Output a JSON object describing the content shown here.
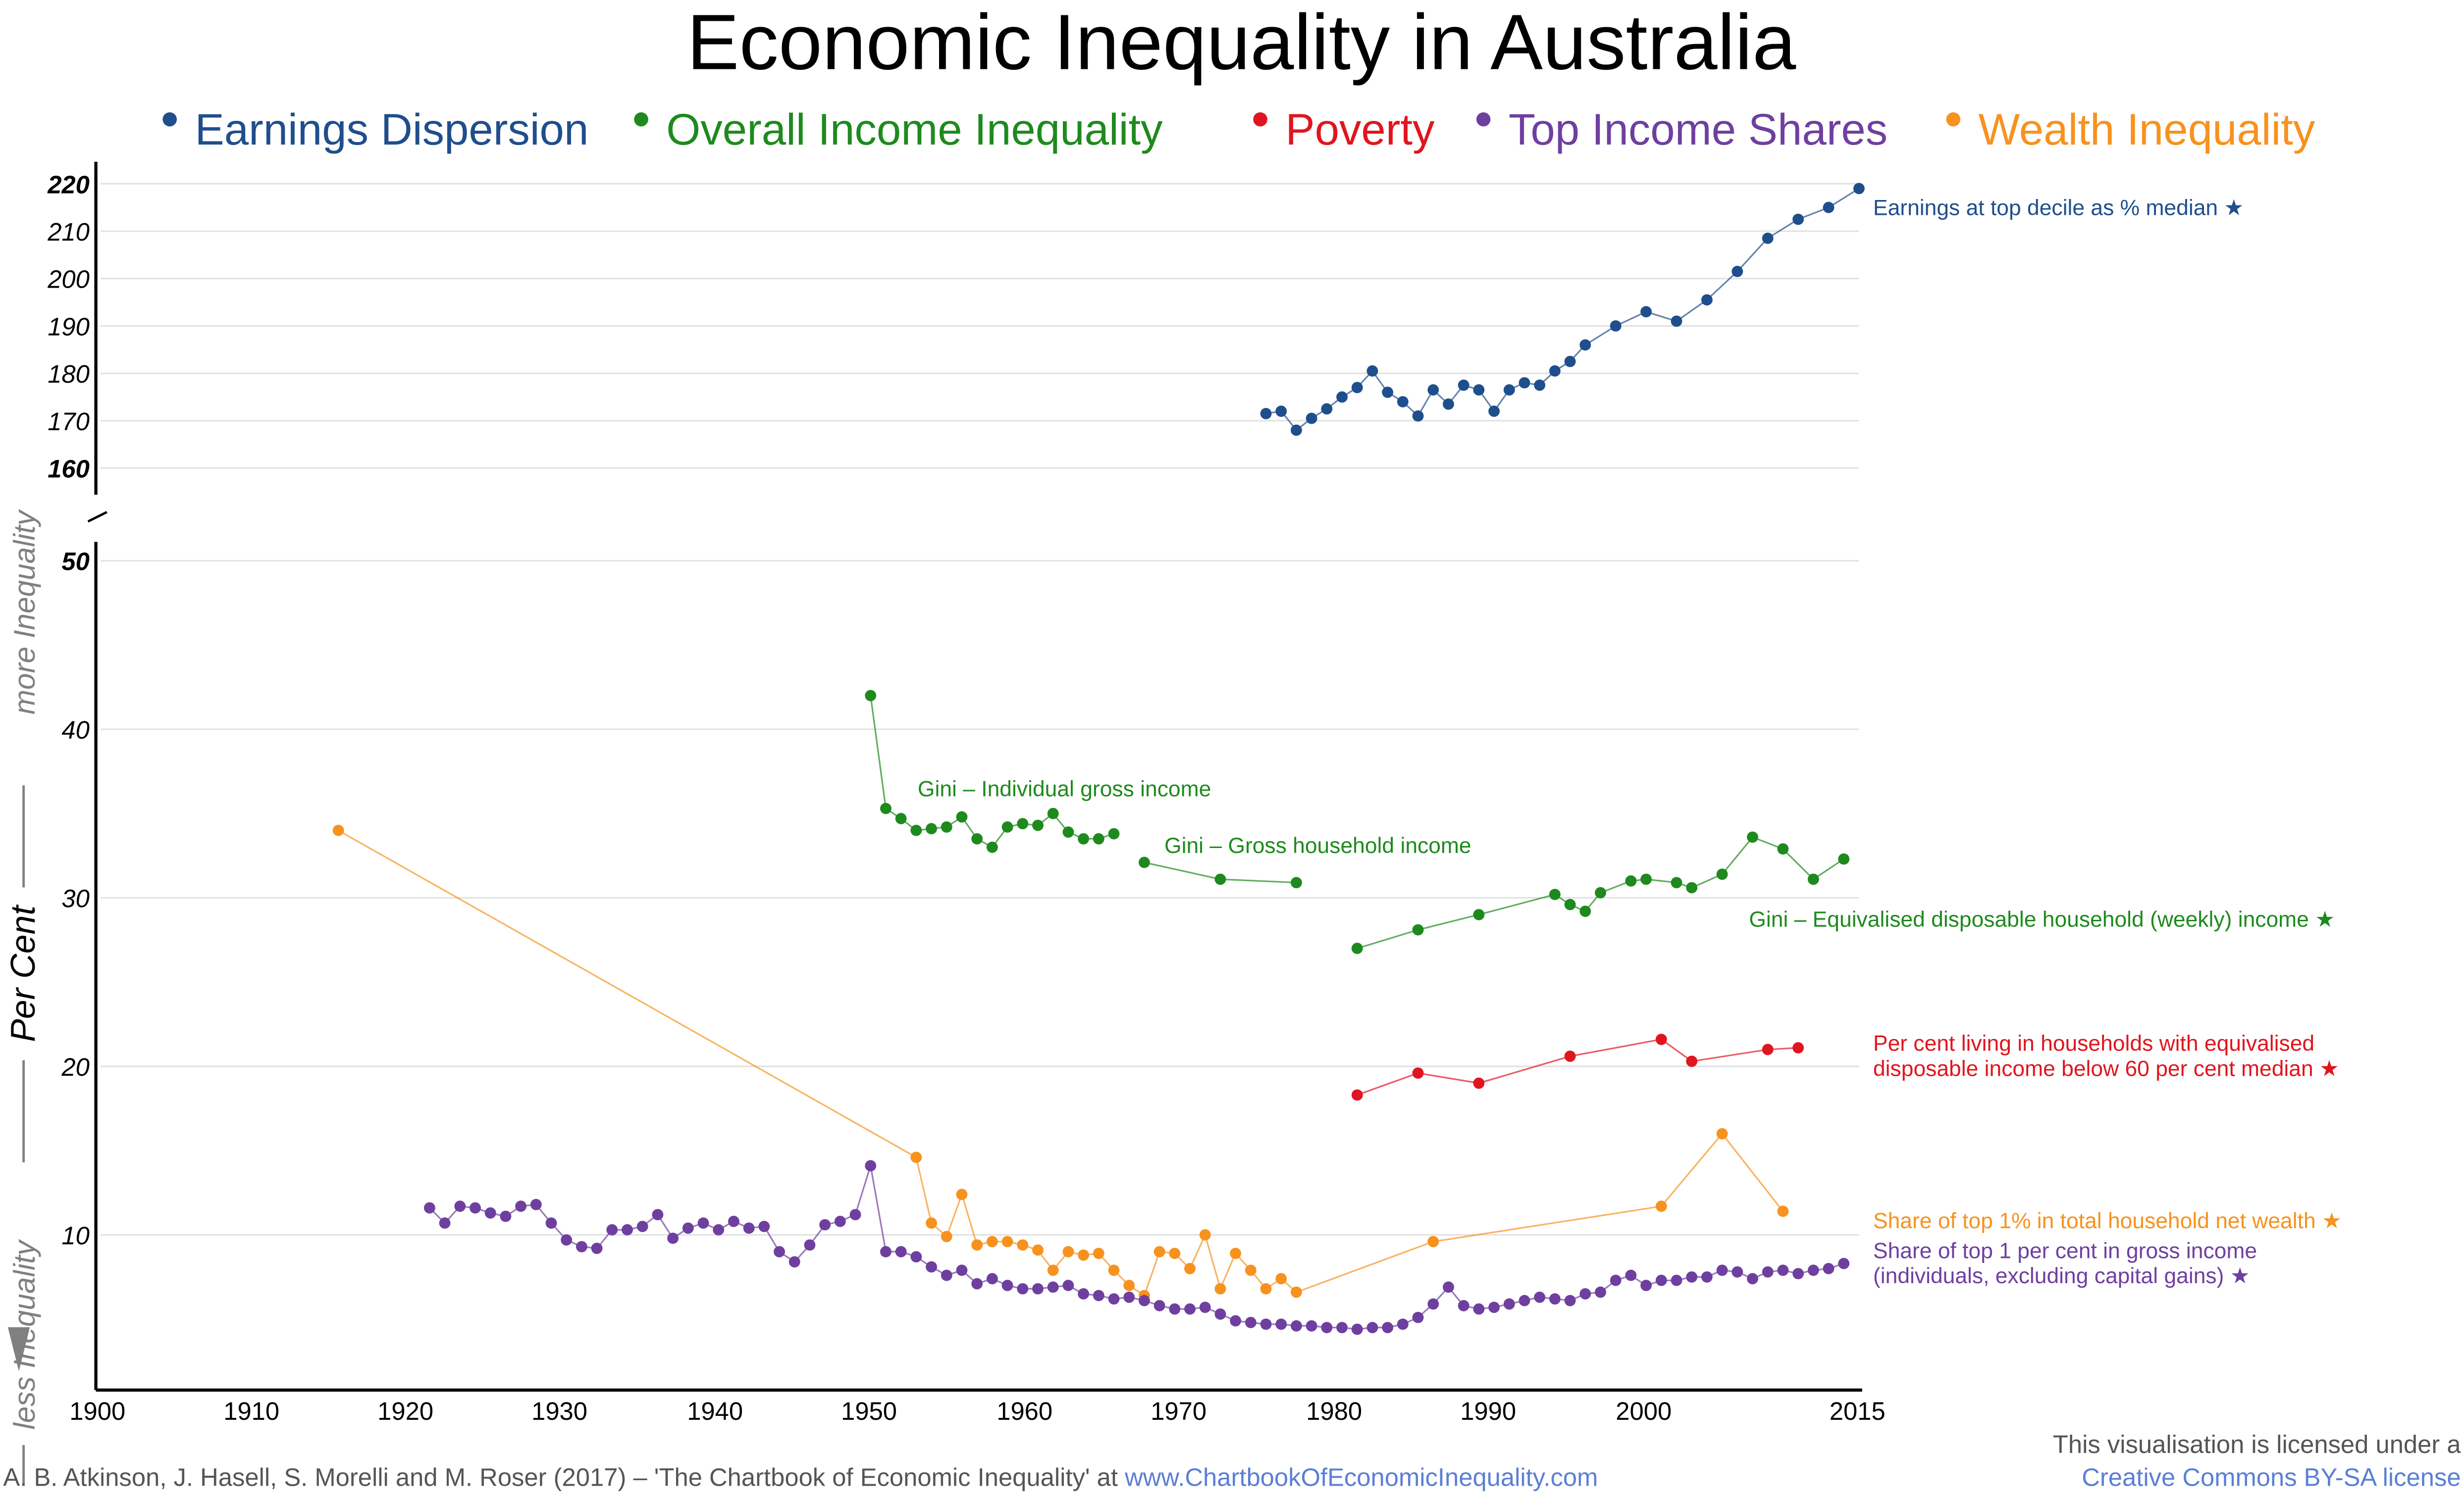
{
  "chart_data": {
    "type": "line",
    "title": "Economic Inequality in Australia",
    "ylabel": "Per Cent",
    "ylabel_more": "more Inequality",
    "ylabel_less": "less Inequality",
    "legend_placement": "top",
    "grid": true,
    "legend": [
      {
        "name": "Earnings Dispersion",
        "color": "#1f4e8c"
      },
      {
        "name": "Overall Income Inequality",
        "color": "#1e8a1e"
      },
      {
        "name": "Poverty",
        "color": "#e0151f"
      },
      {
        "name": "Top Income Shares",
        "color": "#6f3fa0"
      },
      {
        "name": "Wealth Inequality",
        "color": "#f7921e"
      }
    ],
    "x_ticks": [
      "1900",
      "1910",
      "1920",
      "1930",
      "1940",
      "1950",
      "1960",
      "1970",
      "1980",
      "1990",
      "2000",
      "2015"
    ],
    "xlim": [
      1900,
      2015
    ],
    "top_panel": {
      "ylim": [
        155,
        222
      ],
      "y_ticks": [
        "220",
        "210",
        "200",
        "190",
        "180",
        "170",
        "160"
      ]
    },
    "bottom_panel": {
      "ylim": [
        0,
        51
      ],
      "y_ticks": [
        "50",
        "40",
        "30",
        "20",
        "10"
      ]
    },
    "series": [
      {
        "name": "Earnings Dispersion",
        "label": "Earnings at top decile as % median ★",
        "panel": "top",
        "color": "#1f4e8c",
        "x": [
          1976,
          1977,
          1978,
          1979,
          1980,
          1981,
          1982,
          1983,
          1984,
          1985,
          1986,
          1987,
          1988,
          1989,
          1990,
          1991,
          1992,
          1993,
          1994,
          1995,
          1996,
          1997,
          1999,
          2001,
          2003,
          2005,
          2007,
          2009,
          2011,
          2013,
          2015
        ],
        "y": [
          171.5,
          172,
          168,
          170.5,
          172.5,
          175,
          177,
          180.5,
          176,
          174,
          171,
          176.5,
          173.5,
          177.5,
          176.5,
          172,
          176.5,
          178,
          177.5,
          180.5,
          182.5,
          186,
          190,
          193,
          191,
          195.5,
          201.5,
          208.5,
          212.5,
          215,
          219
        ]
      },
      {
        "name": "Overall Income Inequality",
        "label": "Gini – Individual gross income",
        "panel": "bottom",
        "color": "#1e8a1e",
        "x": [
          1950,
          1951,
          1952,
          1953,
          1954,
          1955,
          1956,
          1957,
          1958,
          1959,
          1960,
          1961,
          1962,
          1963,
          1964,
          1965,
          1966
        ],
        "y": [
          42,
          35.3,
          34.7,
          34,
          34.1,
          34.2,
          34.8,
          33.5,
          33,
          34.2,
          34.4,
          34.3,
          35,
          33.9,
          33.5,
          33.5,
          33.8
        ]
      },
      {
        "name": "Overall Income Inequality",
        "label": "Gini – Gross household income",
        "panel": "bottom",
        "color": "#1e8a1e",
        "x": [
          1968,
          1973,
          1978
        ],
        "y": [
          32.1,
          31.1,
          30.9
        ]
      },
      {
        "name": "Overall Income Inequality",
        "label": "Gini – Equivalised disposable household (weekly) income ★",
        "panel": "bottom",
        "color": "#1e8a1e",
        "x": [
          1982,
          1986,
          1990,
          1995,
          1996,
          1997,
          1998,
          2000,
          2001,
          2003,
          2004,
          2006,
          2008,
          2010,
          2012,
          2014
        ],
        "y": [
          27,
          28.1,
          29,
          30.2,
          29.6,
          29.2,
          30.3,
          31,
          31.1,
          30.9,
          30.6,
          31.4,
          33.6,
          32.9,
          31.1,
          32.3
        ]
      },
      {
        "name": "Poverty",
        "label": "Per cent living in households with equivalised disposable income below 60 per cent median ★",
        "label_lines": [
          "Per cent living in households with equivalised",
          "disposable income below 60 per cent median ★"
        ],
        "panel": "bottom",
        "color": "#e0151f",
        "x": [
          1982,
          1986,
          1990,
          1996,
          2002,
          2004,
          2009,
          2011
        ],
        "y": [
          18.3,
          19.6,
          19,
          20.6,
          21.6,
          20.3,
          21,
          21.1
        ]
      },
      {
        "name": "Wealth Inequality",
        "label": "Share of top 1% in total household net wealth ★",
        "panel": "bottom",
        "color": "#f7921e",
        "x": [
          1915,
          1953,
          1954,
          1955,
          1956,
          1957,
          1958,
          1959,
          1960,
          1961,
          1962,
          1963,
          1964,
          1965,
          1966,
          1967,
          1968,
          1969,
          1970,
          1971,
          1972,
          1973,
          1974,
          1975,
          1976,
          1977,
          1978,
          1987,
          2002,
          2006,
          2010
        ],
        "y": [
          34,
          14.6,
          10.7,
          9.9,
          12.4,
          9.4,
          9.6,
          9.6,
          9.4,
          9.1,
          7.9,
          9,
          8.8,
          8.9,
          7.9,
          7,
          6.4,
          9,
          8.9,
          8,
          10,
          6.8,
          8.9,
          7.9,
          6.8,
          7.4,
          6.6,
          9.6,
          11.7,
          16,
          11.4
        ]
      },
      {
        "name": "Top Income Shares",
        "label": "Share of top 1 per cent in gross income (individuals, excluding capital gains) ★",
        "label_lines": [
          "Share of top 1 per cent in gross income",
          "(individuals, excluding capital gains) ★"
        ],
        "panel": "bottom",
        "color": "#6f3fa0",
        "x": [
          1921,
          1922,
          1923,
          1924,
          1925,
          1926,
          1927,
          1928,
          1929,
          1930,
          1931,
          1932,
          1933,
          1934,
          1935,
          1936,
          1937,
          1938,
          1939,
          1940,
          1941,
          1942,
          1943,
          1944,
          1945,
          1946,
          1947,
          1948,
          1949,
          1950,
          1951,
          1952,
          1953,
          1954,
          1955,
          1956,
          1957,
          1958,
          1959,
          1960,
          1961,
          1962,
          1963,
          1964,
          1965,
          1966,
          1967,
          1968,
          1969,
          1970,
          1971,
          1972,
          1973,
          1974,
          1975,
          1976,
          1977,
          1978,
          1979,
          1980,
          1981,
          1982,
          1983,
          1984,
          1985,
          1986,
          1987,
          1988,
          1989,
          1990,
          1991,
          1992,
          1993,
          1994,
          1995,
          1996,
          1997,
          1998,
          1999,
          2000,
          2001,
          2002,
          2003,
          2004,
          2005,
          2006,
          2007,
          2008,
          2009,
          2010,
          2011,
          2012,
          2013,
          2014
        ],
        "y": [
          11.6,
          10.7,
          11.7,
          11.6,
          11.3,
          11.1,
          11.7,
          11.8,
          10.7,
          9.7,
          9.3,
          9.2,
          10.3,
          10.3,
          10.5,
          11.2,
          9.8,
          10.4,
          10.7,
          10.3,
          10.8,
          10.4,
          10.5,
          9.0,
          8.4,
          9.4,
          10.6,
          10.8,
          11.2,
          14.1,
          9.0,
          9.0,
          8.7,
          8.1,
          7.6,
          7.9,
          7.1,
          7.4,
          7.0,
          6.8,
          6.8,
          6.9,
          7.0,
          6.5,
          6.4,
          6.2,
          6.3,
          6.1,
          5.8,
          5.6,
          5.6,
          5.7,
          5.3,
          4.9,
          4.8,
          4.7,
          4.7,
          4.6,
          4.6,
          4.5,
          4.5,
          4.4,
          4.5,
          4.5,
          4.7,
          5.1,
          5.9,
          6.9,
          5.8,
          5.6,
          5.7,
          5.9,
          6.1,
          6.3,
          6.2,
          6.1,
          6.5,
          6.6,
          7.3,
          7.6,
          7.0,
          7.3,
          7.3,
          7.5,
          7.5,
          7.9,
          7.8,
          7.4,
          7.8,
          7.9,
          7.7,
          7.9,
          8.0,
          8.3
        ]
      }
    ]
  },
  "footer": {
    "citation": "A. B. Atkinson, J. Hasell, S. Morelli and M. Roser (2017) – 'The Chartbook of Economic Inequality' at ",
    "citation_link": "www.ChartbookOfEconomicInequality.com",
    "license_line1": "This visualisation is licensed under a",
    "license_link": "Creative Commons BY-SA license"
  }
}
